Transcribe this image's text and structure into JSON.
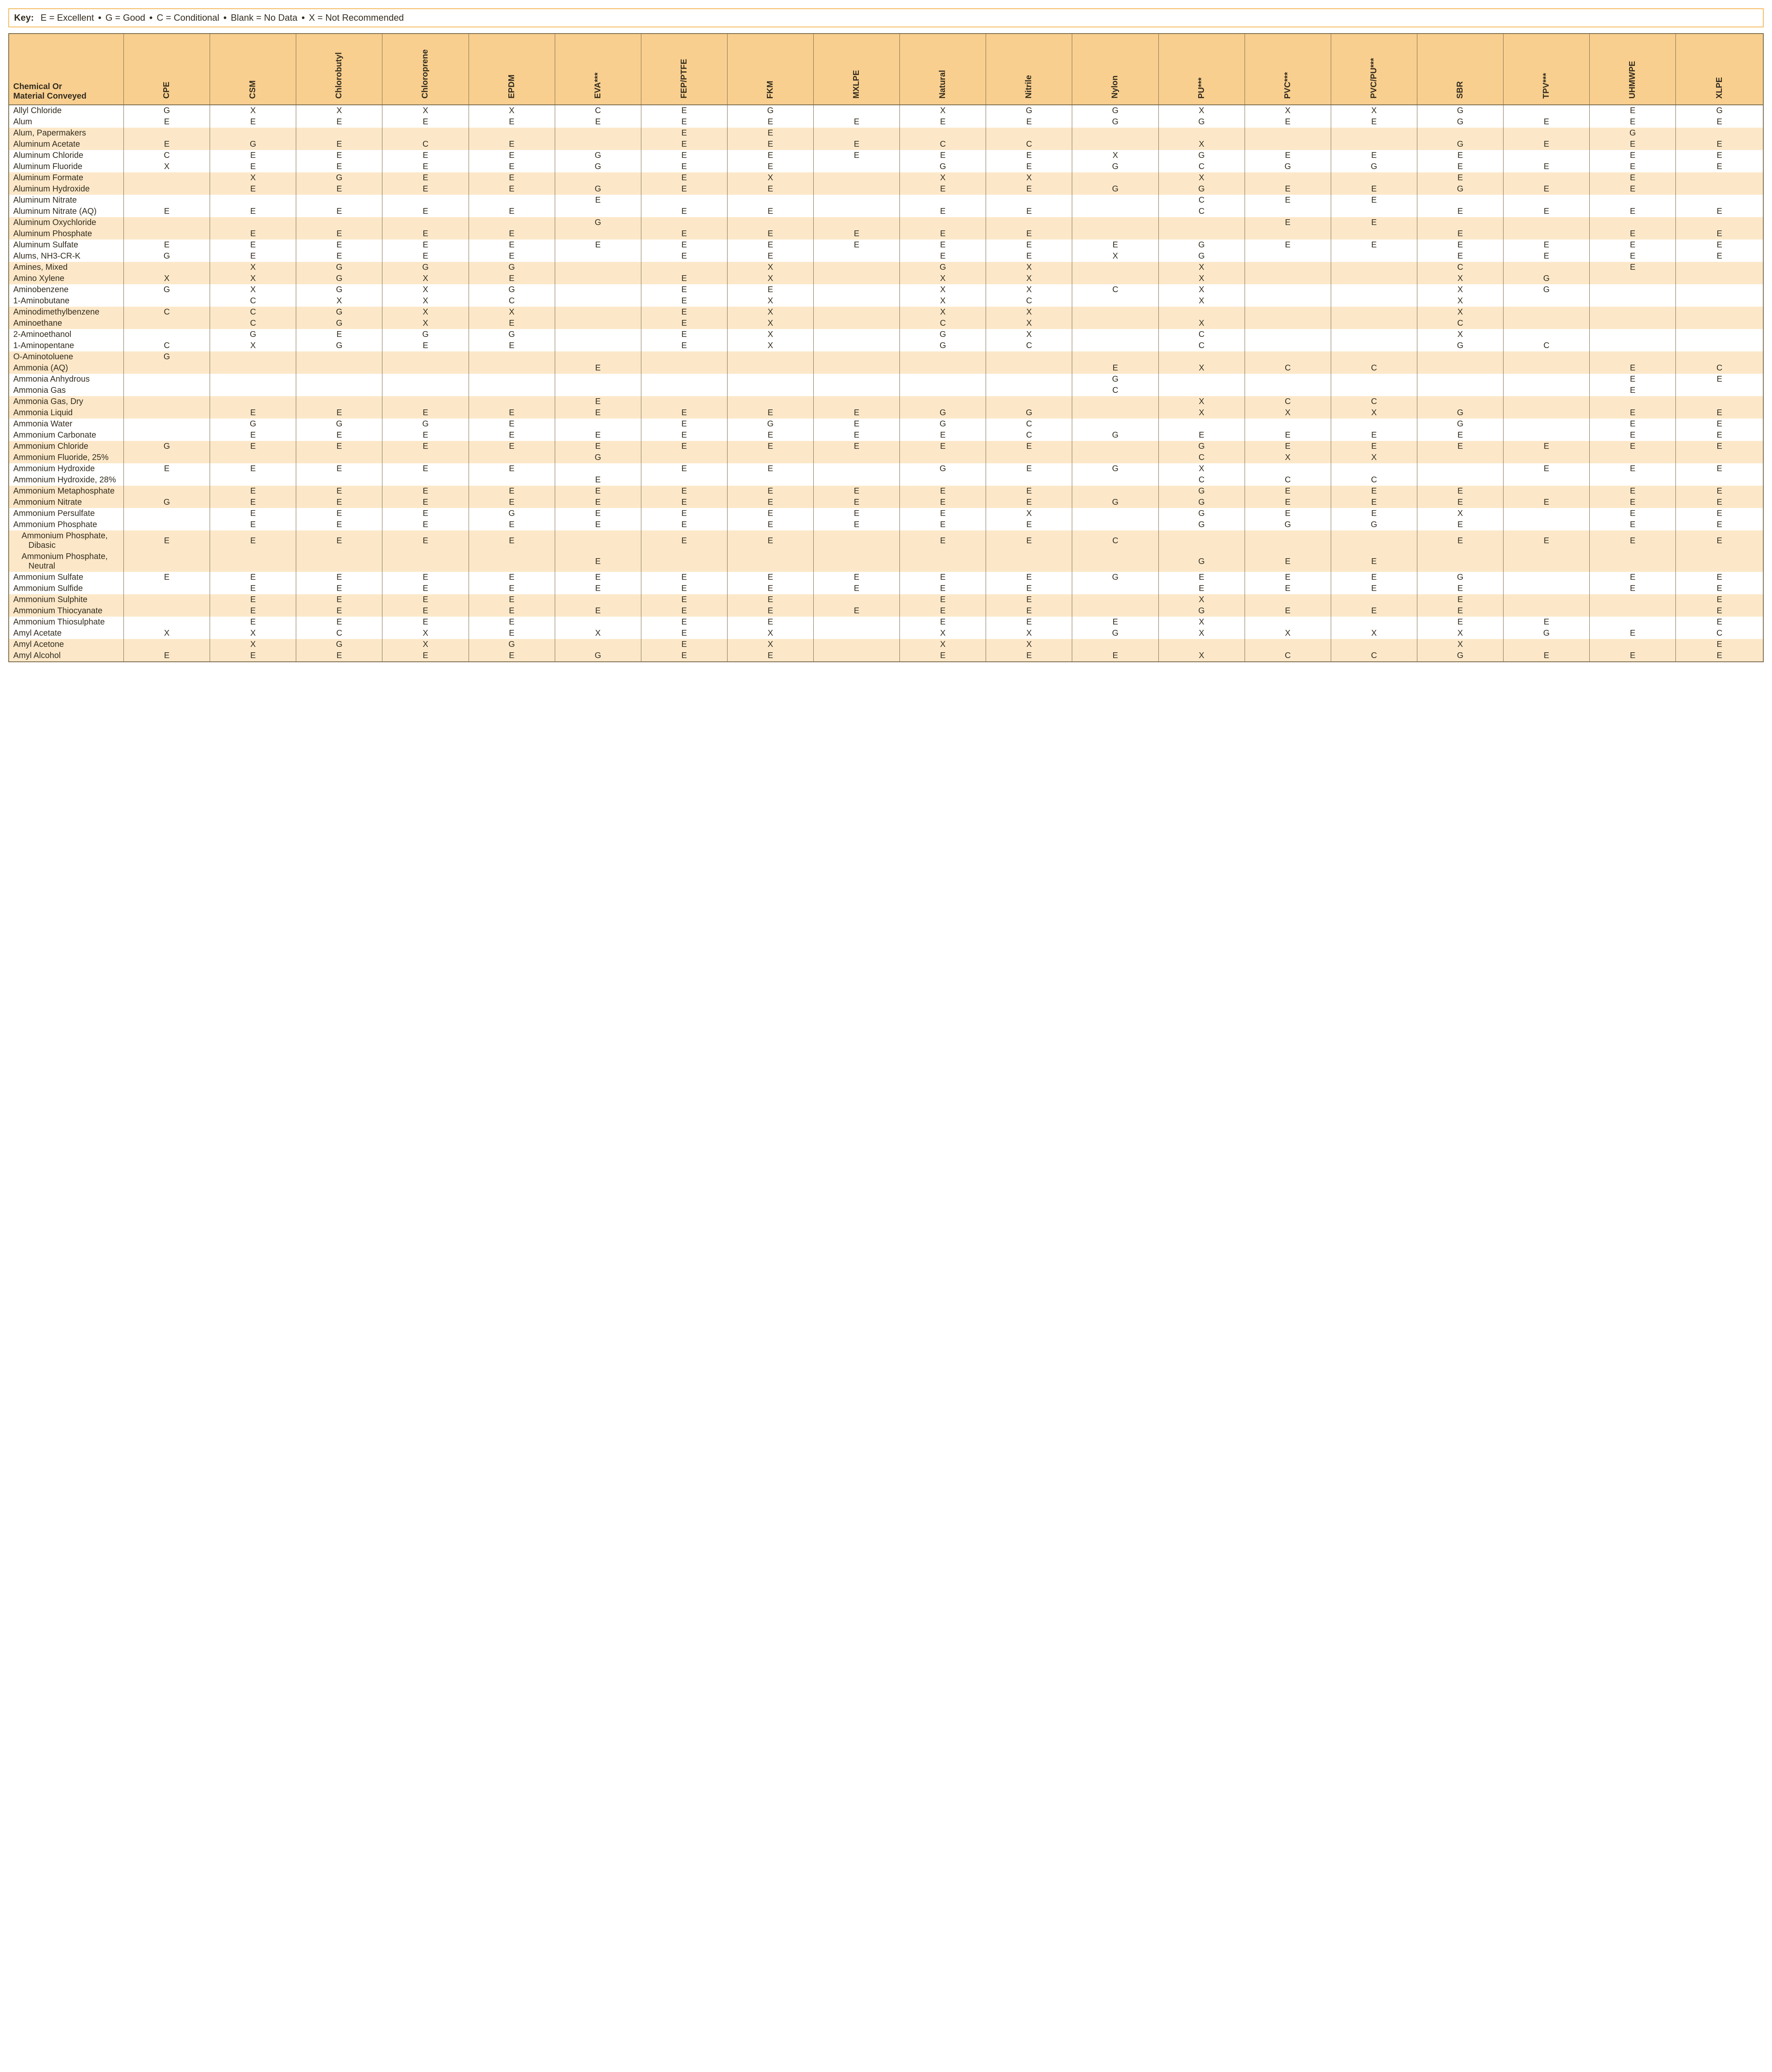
{
  "key": {
    "label": "Key:",
    "items": [
      "E = Excellent",
      "G = Good",
      "C = Conditional",
      "Blank = No Data",
      "X = Not Recommended"
    ]
  },
  "colors": {
    "header_bg": "#f8cf8f",
    "alt_row_bg": "#fce8c9",
    "border": "#7a6a4a",
    "key_border": "#f5b95a"
  },
  "table": {
    "chem_header": "Chemical Or\nMaterial Conveyed",
    "columns": [
      "CPE",
      "CSM",
      "Chlorobutyl",
      "Chloroprene",
      "EPDM",
      "EVA***",
      "FEP/PTFE",
      "FKM",
      "MXLPE",
      "Natural",
      "Nitrile",
      "Nylon",
      "PU***",
      "PVC***",
      "PVC/PU***",
      "SBR",
      "TPV***",
      "UHMWPE",
      "XLPE"
    ],
    "rows": [
      {
        "name": "Allyl Chloride",
        "v": [
          "G",
          "X",
          "X",
          "X",
          "X",
          "C",
          "E",
          "G",
          "",
          "X",
          "G",
          "G",
          "X",
          "X",
          "X",
          "G",
          "",
          "E",
          "G"
        ]
      },
      {
        "name": "Alum",
        "v": [
          "E",
          "E",
          "E",
          "E",
          "E",
          "E",
          "E",
          "E",
          "E",
          "E",
          "E",
          "G",
          "G",
          "E",
          "E",
          "G",
          "E",
          "E",
          "E"
        ]
      },
      {
        "name": "Alum, Papermakers",
        "v": [
          "",
          "",
          "",
          "",
          "",
          "",
          "E",
          "E",
          "",
          "",
          "",
          "",
          "",
          "",
          "",
          "",
          "",
          "G",
          ""
        ]
      },
      {
        "name": "Aluminum Acetate",
        "v": [
          "E",
          "G",
          "E",
          "C",
          "E",
          "",
          "E",
          "E",
          "E",
          "C",
          "C",
          "",
          "X",
          "",
          "",
          "G",
          "E",
          "E",
          "E"
        ]
      },
      {
        "name": "Aluminum Chloride",
        "v": [
          "C",
          "E",
          "E",
          "E",
          "E",
          "G",
          "E",
          "E",
          "E",
          "E",
          "E",
          "X",
          "G",
          "E",
          "E",
          "E",
          "",
          "E",
          "E"
        ]
      },
      {
        "name": "Aluminum Fluoride",
        "v": [
          "X",
          "E",
          "E",
          "E",
          "E",
          "G",
          "E",
          "E",
          "",
          "G",
          "E",
          "G",
          "C",
          "G",
          "G",
          "E",
          "E",
          "E",
          "E"
        ]
      },
      {
        "name": "Aluminum Formate",
        "v": [
          "",
          "X",
          "G",
          "E",
          "E",
          "",
          "E",
          "X",
          "",
          "X",
          "X",
          "",
          "X",
          "",
          "",
          "E",
          "",
          "E",
          ""
        ]
      },
      {
        "name": "Aluminum Hydroxide",
        "v": [
          "",
          "E",
          "E",
          "E",
          "E",
          "G",
          "E",
          "E",
          "",
          "E",
          "E",
          "G",
          "G",
          "E",
          "E",
          "G",
          "E",
          "E",
          ""
        ]
      },
      {
        "name": "Aluminum Nitrate",
        "v": [
          "",
          "",
          "",
          "",
          "",
          "E",
          "",
          "",
          "",
          "",
          "",
          "",
          "C",
          "E",
          "E",
          "",
          "",
          "",
          ""
        ]
      },
      {
        "name": "Aluminum Nitrate (AQ)",
        "v": [
          "E",
          "E",
          "E",
          "E",
          "E",
          "",
          "E",
          "E",
          "",
          "E",
          "E",
          "",
          "C",
          "",
          "",
          "E",
          "E",
          "E",
          "E"
        ]
      },
      {
        "name": "Aluminum Oxychloride",
        "v": [
          "",
          "",
          "",
          "",
          "",
          "G",
          "",
          "",
          "",
          "",
          "",
          "",
          "",
          "E",
          "E",
          "",
          "",
          "",
          ""
        ]
      },
      {
        "name": "Aluminum Phosphate",
        "v": [
          "",
          "E",
          "E",
          "E",
          "E",
          "",
          "E",
          "E",
          "E",
          "E",
          "E",
          "",
          "",
          "",
          "",
          "E",
          "",
          "E",
          "E"
        ]
      },
      {
        "name": "Aluminum Sulfate",
        "v": [
          "E",
          "E",
          "E",
          "E",
          "E",
          "E",
          "E",
          "E",
          "E",
          "E",
          "E",
          "E",
          "G",
          "E",
          "E",
          "E",
          "E",
          "E",
          "E"
        ]
      },
      {
        "name": "Alums, NH3-CR-K",
        "v": [
          "G",
          "E",
          "E",
          "E",
          "E",
          "",
          "E",
          "E",
          "",
          "E",
          "E",
          "X",
          "G",
          "",
          "",
          "E",
          "E",
          "E",
          "E"
        ]
      },
      {
        "name": "Amines, Mixed",
        "v": [
          "",
          "X",
          "G",
          "G",
          "G",
          "",
          "",
          "X",
          "",
          "G",
          "X",
          "",
          "X",
          "",
          "",
          "C",
          "",
          "E",
          ""
        ]
      },
      {
        "name": "Amino Xylene",
        "v": [
          "X",
          "X",
          "G",
          "X",
          "E",
          "",
          "E",
          "X",
          "",
          "X",
          "X",
          "",
          "X",
          "",
          "",
          "X",
          "G",
          "",
          ""
        ]
      },
      {
        "name": "Aminobenzene",
        "v": [
          "G",
          "X",
          "G",
          "X",
          "G",
          "",
          "E",
          "E",
          "",
          "X",
          "X",
          "C",
          "X",
          "",
          "",
          "X",
          "G",
          "",
          ""
        ]
      },
      {
        "name": "1-Aminobutane",
        "v": [
          "",
          "C",
          "X",
          "X",
          "C",
          "",
          "E",
          "X",
          "",
          "X",
          "C",
          "",
          "X",
          "",
          "",
          "X",
          "",
          "",
          ""
        ]
      },
      {
        "name": "Aminodimethylbenzene",
        "v": [
          "C",
          "C",
          "G",
          "X",
          "X",
          "",
          "E",
          "X",
          "",
          "X",
          "X",
          "",
          "",
          "",
          "",
          "X",
          "",
          "",
          ""
        ]
      },
      {
        "name": "Aminoethane",
        "v": [
          "",
          "C",
          "G",
          "X",
          "E",
          "",
          "E",
          "X",
          "",
          "C",
          "X",
          "",
          "X",
          "",
          "",
          "C",
          "",
          "",
          ""
        ]
      },
      {
        "name": "2-Aminoethanol",
        "v": [
          "",
          "G",
          "E",
          "G",
          "G",
          "",
          "E",
          "X",
          "",
          "G",
          "X",
          "",
          "C",
          "",
          "",
          "X",
          "",
          "",
          ""
        ]
      },
      {
        "name": "1-Aminopentane",
        "v": [
          "C",
          "X",
          "G",
          "E",
          "E",
          "",
          "E",
          "X",
          "",
          "G",
          "C",
          "",
          "C",
          "",
          "",
          "G",
          "C",
          "",
          ""
        ]
      },
      {
        "name": "O-Aminotoluene",
        "v": [
          "G",
          "",
          "",
          "",
          "",
          "",
          "",
          "",
          "",
          "",
          "",
          "",
          "",
          "",
          "",
          "",
          "",
          "",
          ""
        ]
      },
      {
        "name": "Ammonia (AQ)",
        "v": [
          "",
          "",
          "",
          "",
          "",
          "E",
          "",
          "",
          "",
          "",
          "",
          "E",
          "X",
          "C",
          "C",
          "",
          "",
          "E",
          "C"
        ]
      },
      {
        "name": "Ammonia Anhydrous",
        "v": [
          "",
          "",
          "",
          "",
          "",
          "",
          "",
          "",
          "",
          "",
          "",
          "G",
          "",
          "",
          "",
          "",
          "",
          "E",
          "E"
        ]
      },
      {
        "name": "Ammonia Gas",
        "v": [
          "",
          "",
          "",
          "",
          "",
          "",
          "",
          "",
          "",
          "",
          "",
          "C",
          "",
          "",
          "",
          "",
          "",
          "E",
          ""
        ]
      },
      {
        "name": "Ammonia Gas, Dry",
        "v": [
          "",
          "",
          "",
          "",
          "",
          "E",
          "",
          "",
          "",
          "",
          "",
          "",
          "X",
          "C",
          "C",
          "",
          "",
          "",
          ""
        ]
      },
      {
        "name": "Ammonia Liquid",
        "v": [
          "",
          "E",
          "E",
          "E",
          "E",
          "E",
          "E",
          "E",
          "E",
          "G",
          "G",
          "",
          "X",
          "X",
          "X",
          "G",
          "",
          "E",
          "E"
        ]
      },
      {
        "name": "Ammonia Water",
        "v": [
          "",
          "G",
          "G",
          "G",
          "E",
          "",
          "E",
          "G",
          "E",
          "G",
          "C",
          "",
          "",
          "",
          "",
          "G",
          "",
          "E",
          "E"
        ]
      },
      {
        "name": "Ammonium Carbonate",
        "v": [
          "",
          "E",
          "E",
          "E",
          "E",
          "E",
          "E",
          "E",
          "E",
          "E",
          "C",
          "G",
          "E",
          "E",
          "E",
          "E",
          "",
          "E",
          "E"
        ]
      },
      {
        "name": "Ammonium Chloride",
        "v": [
          "G",
          "E",
          "E",
          "E",
          "E",
          "E",
          "E",
          "E",
          "E",
          "E",
          "E",
          "",
          "G",
          "E",
          "E",
          "E",
          "E",
          "E",
          "E"
        ]
      },
      {
        "name": "Ammonium Fluoride, 25%",
        "v": [
          "",
          "",
          "",
          "",
          "",
          "G",
          "",
          "",
          "",
          "",
          "",
          "",
          "C",
          "X",
          "X",
          "",
          "",
          "",
          ""
        ]
      },
      {
        "name": "Ammonium Hydroxide",
        "v": [
          "E",
          "E",
          "E",
          "E",
          "E",
          "",
          "E",
          "E",
          "",
          "G",
          "E",
          "G",
          "X",
          "",
          "",
          "",
          "E",
          "E",
          "E"
        ]
      },
      {
        "name": "Ammonium Hydroxide, 28%",
        "v": [
          "",
          "",
          "",
          "",
          "",
          "E",
          "",
          "",
          "",
          "",
          "",
          "",
          "C",
          "C",
          "C",
          "",
          "",
          "",
          ""
        ]
      },
      {
        "name": "Ammonium Metaphosphate",
        "v": [
          "",
          "E",
          "E",
          "E",
          "E",
          "E",
          "E",
          "E",
          "E",
          "E",
          "E",
          "",
          "G",
          "E",
          "E",
          "E",
          "",
          "E",
          "E"
        ]
      },
      {
        "name": "Ammonium Nitrate",
        "v": [
          "G",
          "E",
          "E",
          "E",
          "E",
          "E",
          "E",
          "E",
          "E",
          "E",
          "E",
          "G",
          "G",
          "E",
          "E",
          "E",
          "E",
          "E",
          "E"
        ]
      },
      {
        "name": "Ammonium Persulfate",
        "v": [
          "",
          "E",
          "E",
          "E",
          "G",
          "E",
          "E",
          "E",
          "E",
          "E",
          "X",
          "",
          "G",
          "E",
          "E",
          "X",
          "",
          "E",
          "E"
        ]
      },
      {
        "name": "Ammonium Phosphate",
        "v": [
          "",
          "E",
          "E",
          "E",
          "E",
          "E",
          "E",
          "E",
          "E",
          "E",
          "E",
          "",
          "G",
          "G",
          "G",
          "E",
          "",
          "E",
          "E"
        ]
      },
      {
        "name": "Ammonium Phosphate, Dibasic",
        "indent": true,
        "v": [
          "E",
          "E",
          "E",
          "E",
          "E",
          "",
          "E",
          "E",
          "",
          "E",
          "E",
          "C",
          "",
          "",
          "",
          "E",
          "E",
          "E",
          "E"
        ]
      },
      {
        "name": "Ammonium Phosphate, Neutral",
        "indent": true,
        "v": [
          "",
          "",
          "",
          "",
          "",
          "E",
          "",
          "",
          "",
          "",
          "",
          "",
          "G",
          "E",
          "E",
          "",
          "",
          "",
          ""
        ]
      },
      {
        "name": "Ammonium Sulfate",
        "v": [
          "E",
          "E",
          "E",
          "E",
          "E",
          "E",
          "E",
          "E",
          "E",
          "E",
          "E",
          "G",
          "E",
          "E",
          "E",
          "G",
          "",
          "E",
          "E"
        ]
      },
      {
        "name": "Ammonium Sulfide",
        "v": [
          "",
          "E",
          "E",
          "E",
          "E",
          "E",
          "E",
          "E",
          "E",
          "E",
          "E",
          "",
          "E",
          "E",
          "E",
          "E",
          "",
          "E",
          "E"
        ]
      },
      {
        "name": "Ammonium Sulphite",
        "v": [
          "",
          "E",
          "E",
          "E",
          "E",
          "",
          "E",
          "E",
          "",
          "E",
          "E",
          "",
          "X",
          "",
          "",
          "E",
          "",
          "",
          "E"
        ]
      },
      {
        "name": "Ammonium Thiocyanate",
        "v": [
          "",
          "E",
          "E",
          "E",
          "E",
          "E",
          "E",
          "E",
          "E",
          "E",
          "E",
          "",
          "G",
          "E",
          "E",
          "E",
          "",
          "",
          "E"
        ]
      },
      {
        "name": "Ammonium Thiosulphate",
        "v": [
          "",
          "E",
          "E",
          "E",
          "E",
          "",
          "E",
          "E",
          "",
          "E",
          "E",
          "E",
          "X",
          "",
          "",
          "E",
          "E",
          "",
          "E"
        ]
      },
      {
        "name": "Amyl Acetate",
        "v": [
          "X",
          "X",
          "C",
          "X",
          "E",
          "X",
          "E",
          "X",
          "",
          "X",
          "X",
          "G",
          "X",
          "X",
          "X",
          "X",
          "G",
          "E",
          "C"
        ]
      },
      {
        "name": "Amyl Acetone",
        "v": [
          "",
          "X",
          "G",
          "X",
          "G",
          "",
          "E",
          "X",
          "",
          "X",
          "X",
          "",
          "",
          "",
          "",
          "X",
          "",
          "",
          "E"
        ]
      },
      {
        "name": "Amyl Alcohol",
        "v": [
          "E",
          "E",
          "E",
          "E",
          "E",
          "G",
          "E",
          "E",
          "",
          "E",
          "E",
          "E",
          "X",
          "C",
          "C",
          "G",
          "E",
          "E",
          "E"
        ]
      }
    ]
  }
}
